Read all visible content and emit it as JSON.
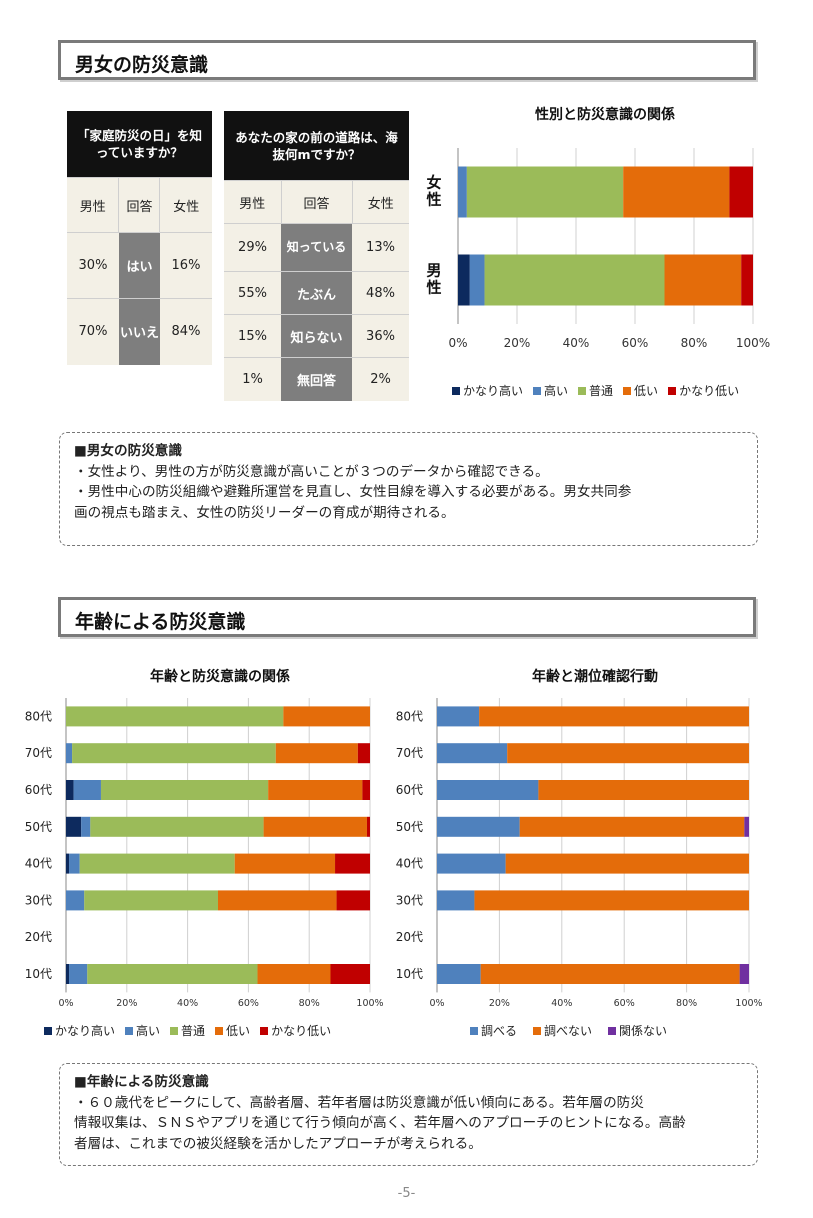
{
  "section1": {
    "title": "男女の防災意識"
  },
  "table1": {
    "header": "「家庭防災の日」を知っていますか？",
    "col_male": "男性",
    "col_answer": "回答",
    "col_female": "女性",
    "rows": [
      {
        "male": "30%",
        "answer": "はい",
        "female": "16%"
      },
      {
        "male": "70%",
        "answer": "いいえ",
        "female": "84%"
      }
    ]
  },
  "table2": {
    "header": "あなたの家の前の道路は、海抜何mですか？",
    "col_male": "男性",
    "col_answer": "回答",
    "col_female": "女性",
    "rows": [
      {
        "male": "29%",
        "answer": "知っている",
        "female": "13%"
      },
      {
        "male": "55%",
        "answer": "たぶん",
        "female": "48%"
      },
      {
        "male": "15%",
        "answer": "知らない",
        "female": "36%"
      },
      {
        "male": "1%",
        "answer": "無回答",
        "female": "2%"
      }
    ]
  },
  "chart_data": [
    {
      "type": "bar",
      "orientation": "horizontal-stacked",
      "title": "性別と防災意識の関係",
      "categories": [
        "女性",
        "男性"
      ],
      "series": [
        {
          "name": "かなり高い",
          "color": "#0d2a5e",
          "values": [
            0,
            4
          ]
        },
        {
          "name": "高い",
          "color": "#4f81bd",
          "values": [
            3,
            5
          ]
        },
        {
          "name": "普通",
          "color": "#9bbb59",
          "values": [
            53,
            61
          ]
        },
        {
          "name": "低い",
          "color": "#e46c0a",
          "values": [
            36,
            26
          ]
        },
        {
          "name": "かなり低い",
          "color": "#c00000",
          "values": [
            8,
            4
          ]
        }
      ],
      "xticks": [
        "0%",
        "20%",
        "40%",
        "60%",
        "80%",
        "100%"
      ],
      "xlim": [
        0,
        100
      ],
      "grid": true,
      "legend": "bottom"
    },
    {
      "type": "bar",
      "orientation": "horizontal-stacked",
      "title": "年齢と防災意識の関係",
      "categories": [
        "80代",
        "70代",
        "60代",
        "50代",
        "40代",
        "30代",
        "20代",
        "10代"
      ],
      "series": [
        {
          "name": "かなり高い",
          "color": "#0d2a5e",
          "values": [
            0,
            0,
            2.5,
            5,
            1,
            0,
            0,
            1
          ]
        },
        {
          "name": "高い",
          "color": "#4f81bd",
          "values": [
            0,
            2,
            9,
            3,
            3.5,
            6,
            0,
            6
          ]
        },
        {
          "name": "普通",
          "color": "#9bbb59",
          "values": [
            71.5,
            67,
            55,
            57,
            51,
            44,
            0,
            56
          ]
        },
        {
          "name": "低い",
          "color": "#e46c0a",
          "values": [
            28.5,
            27,
            31,
            34,
            33,
            39,
            0,
            24
          ]
        },
        {
          "name": "かなり低い",
          "color": "#c00000",
          "values": [
            0,
            4,
            2.5,
            1,
            11.5,
            11,
            0,
            13
          ]
        }
      ],
      "xticks": [
        "0%",
        "20%",
        "40%",
        "60%",
        "80%",
        "100%"
      ],
      "xlim": [
        0,
        100
      ],
      "grid": true,
      "legend": "bottom"
    },
    {
      "type": "bar",
      "orientation": "horizontal-stacked",
      "title": "年齢と潮位確認行動",
      "categories": [
        "80代",
        "70代",
        "60代",
        "50代",
        "40代",
        "30代",
        "20代",
        "10代"
      ],
      "series": [
        {
          "name": "調べる",
          "color": "#4f81bd",
          "values": [
            13.5,
            22.5,
            32.5,
            26.5,
            22,
            12,
            0,
            14
          ]
        },
        {
          "name": "調べない",
          "color": "#e46c0a",
          "values": [
            86.5,
            77.5,
            67.5,
            72,
            78,
            88,
            0,
            83
          ]
        },
        {
          "name": "関係ない",
          "color": "#7030a0",
          "values": [
            0,
            0,
            0,
            1.5,
            0,
            0,
            0,
            3
          ]
        }
      ],
      "xticks": [
        "0%",
        "20%",
        "40%",
        "60%",
        "80%",
        "100%"
      ],
      "xlim": [
        0,
        100
      ],
      "grid": true,
      "legend": "bottom"
    }
  ],
  "note1": {
    "title": "■男女の防災意識",
    "line1": "・女性より、男性の方が防災意識が高いことが３つのデータから確認できる。",
    "line2": "・男性中心の防災組織や避難所運営を見直し、女性目線を導入する必要がある。男女共同参",
    "line3": "画の視点も踏まえ、女性の防災リーダーの育成が期待される。"
  },
  "section2": {
    "title": "年齢による防災意識"
  },
  "note2": {
    "title": "■年齢による防災意識",
    "line1": "・６０歳代をピークにして、高齢者層、若年者層は防災意識が低い傾向にある。若年層の防災",
    "line2": "情報収集は、ＳＮＳやアプリを通じて行う傾向が高く、若年層へのアプローチのヒントになる。高齢",
    "line3": "者層は、これまでの被災経験を活かしたアプローチが考えられる。"
  },
  "page_number": "-5-"
}
